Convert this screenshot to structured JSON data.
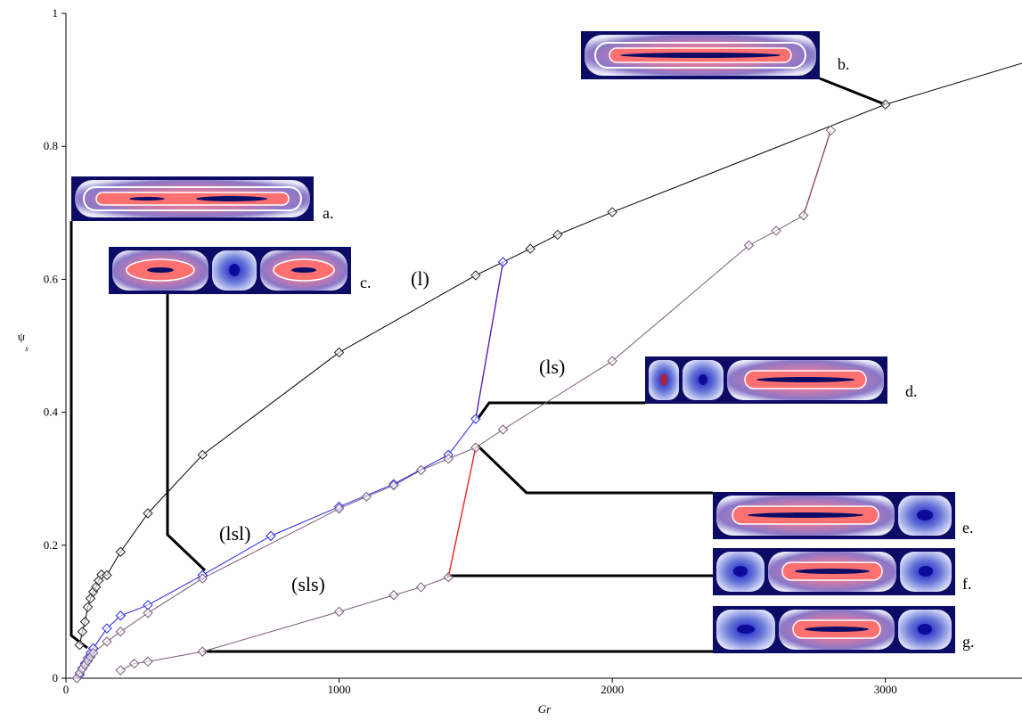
{
  "chart_data": {
    "type": "line",
    "title": "",
    "xlabel": "Gr",
    "ylabel_symbol": "ψ",
    "ylabel_subscript": "s",
    "xlim": [
      0,
      3500
    ],
    "ylim": [
      0,
      1
    ],
    "xticks": [
      0,
      1000,
      2000,
      3000
    ],
    "xtick_labels": [
      "0",
      "1000",
      "2000",
      "3000"
    ],
    "yticks": [
      0,
      0.2,
      0.4,
      0.6,
      0.8,
      1
    ],
    "ytick_labels": [
      "0",
      "0.2",
      "0.4",
      "0.6",
      "0.8",
      "1"
    ],
    "grid": false,
    "series": [
      {
        "color": "#000000",
        "x": [
          50,
          60,
          70,
          80,
          90,
          100,
          110,
          120,
          130,
          150,
          200,
          300,
          500,
          1000,
          1500,
          1700,
          1800,
          2000,
          3000,
          3500
        ],
        "y": [
          0.05,
          0.07,
          0.085,
          0.107,
          0.12,
          0.13,
          0.137,
          0.147,
          0.156,
          0.155,
          0.19,
          0.248,
          0.336,
          0.49,
          0.606,
          0.646,
          0.667,
          0.701,
          0.863,
          0.925
        ]
      },
      {
        "color": "#2222ee",
        "x": [
          50,
          60,
          70,
          80,
          90,
          100,
          150,
          200,
          300,
          500,
          750,
          1000,
          1200,
          1400,
          1500,
          1600
        ],
        "y": [
          0.005,
          0.015,
          0.022,
          0.03,
          0.038,
          0.045,
          0.075,
          0.094,
          0.11,
          0.155,
          0.214,
          0.258,
          0.292,
          0.336,
          0.39,
          0.626
        ]
      },
      {
        "color": "#7a5a78",
        "x": [
          40,
          50,
          60,
          70,
          80,
          90,
          100,
          150,
          200,
          300,
          500,
          1000,
          1100,
          1200,
          1300,
          1400,
          1500,
          1600,
          2000,
          2500,
          2600,
          2700,
          2800
        ],
        "y": [
          0.0,
          0.008,
          0.014,
          0.02,
          0.026,
          0.032,
          0.038,
          0.055,
          0.07,
          0.098,
          0.15,
          0.255,
          0.273,
          0.29,
          0.313,
          0.33,
          0.347,
          0.374,
          0.477,
          0.651,
          0.673,
          0.696,
          0.824
        ]
      },
      {
        "color": "#7a5a78",
        "x": [
          200,
          250,
          300,
          500,
          1000,
          1200,
          1300,
          1400
        ],
        "y": [
          0.012,
          0.022,
          0.025,
          0.04,
          0.1,
          0.125,
          0.137,
          0.152
        ]
      }
    ],
    "transitions": [
      {
        "color": "#ee2222",
        "x": [
          1500,
          1600
        ],
        "y": [
          0.39,
          0.626
        ]
      },
      {
        "color": "#ee2222",
        "x": [
          1400,
          1500
        ],
        "y": [
          0.152,
          0.347
        ]
      },
      {
        "color": "#ee2222",
        "x": [
          2700,
          2800
        ],
        "y": [
          0.696,
          0.824
        ]
      }
    ],
    "curve_labels": [
      "(l)",
      "(ls)",
      "(lsl)",
      "(sls)"
    ],
    "panel_labels": [
      "a.",
      "b.",
      "c.",
      "d.",
      "e.",
      "f.",
      "g."
    ]
  }
}
